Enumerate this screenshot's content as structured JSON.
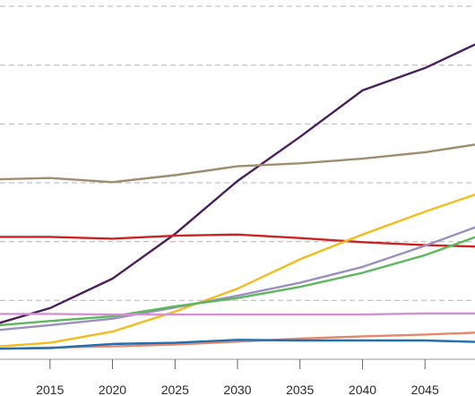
{
  "chart_data": {
    "type": "line",
    "x": [
      2011,
      2015,
      2020,
      2025,
      2030,
      2035,
      2040,
      2045,
      2050
    ],
    "xticks": [
      "2015",
      "2020",
      "2025",
      "2030",
      "2035",
      "2040",
      "2045"
    ],
    "xlim": [
      2011,
      2049
    ],
    "ylim": [
      0,
      6
    ],
    "y_gridlines": [
      1,
      2,
      3,
      4,
      5,
      6
    ],
    "grid": true,
    "y_tick_labels_visible": false,
    "series": [
      {
        "color": "#4a1f5c",
        "values": [
          0.62,
          0.87,
          1.37,
          2.13,
          3.03,
          3.78,
          4.57,
          4.95,
          5.45
        ]
      },
      {
        "color": "#a08c70",
        "values": [
          3.06,
          3.08,
          3.01,
          3.13,
          3.28,
          3.33,
          3.41,
          3.52,
          3.68
        ]
      },
      {
        "color": "#cc2222",
        "values": [
          2.08,
          2.08,
          2.05,
          2.1,
          2.12,
          2.06,
          1.99,
          1.94,
          1.91
        ]
      },
      {
        "color": "#f2bc1c",
        "values": [
          0.22,
          0.28,
          0.47,
          0.81,
          1.2,
          1.7,
          2.12,
          2.51,
          2.87
        ]
      },
      {
        "color": "#9b8fbf",
        "values": [
          0.5,
          0.58,
          0.69,
          0.88,
          1.08,
          1.3,
          1.57,
          1.93,
          2.32
        ]
      },
      {
        "color": "#5cb85c",
        "values": [
          0.58,
          0.65,
          0.73,
          0.9,
          1.04,
          1.23,
          1.47,
          1.77,
          2.15
        ]
      },
      {
        "color": "#d58fd2",
        "values": [
          0.77,
          0.77,
          0.76,
          0.76,
          0.76,
          0.76,
          0.76,
          0.78,
          0.78
        ]
      },
      {
        "color": "#e8866a",
        "values": [
          0.18,
          0.2,
          0.22,
          0.25,
          0.3,
          0.35,
          0.39,
          0.42,
          0.46
        ]
      },
      {
        "color": "#1f6fb2",
        "values": [
          0.18,
          0.19,
          0.26,
          0.28,
          0.33,
          0.32,
          0.32,
          0.32,
          0.29
        ]
      }
    ]
  }
}
